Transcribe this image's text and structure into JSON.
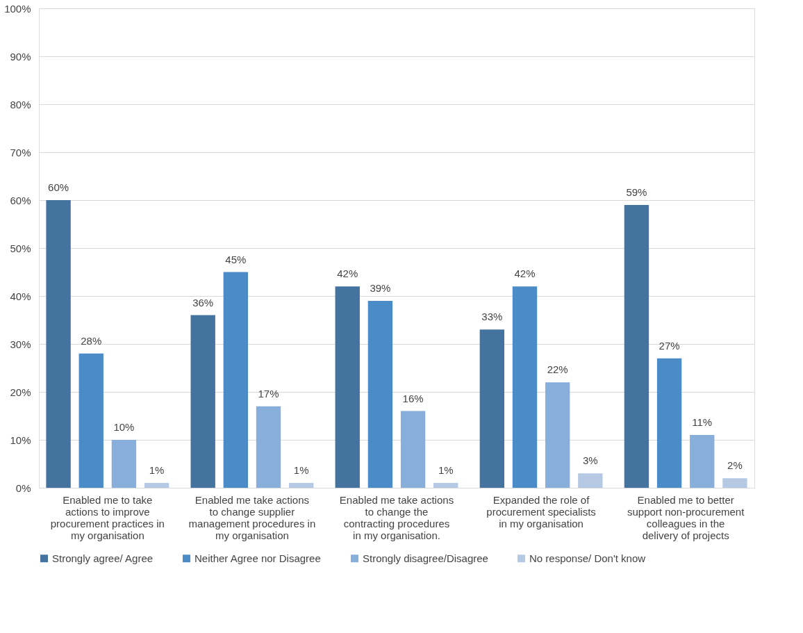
{
  "chart_data": {
    "type": "bar",
    "categories": [
      "Enabled me to take actions to improve procurement practices in my organisation",
      "Enabled me take actions to change supplier management procedures in my organisation",
      "Enabled me take actions to change the contracting procedures in my organisation.",
      "Expanded the role of procurement specialists in my organisation",
      "Enabled me to better support non-procurement colleagues in the delivery of projects"
    ],
    "series": [
      {
        "name": "Strongly agree/ Agree",
        "color": "#44739f",
        "values": [
          60,
          36,
          42,
          33,
          59
        ],
        "value_labels": [
          "60%",
          "36%",
          "42%",
          "33%",
          "59%"
        ]
      },
      {
        "name": "Neither Agree nor Disagree",
        "color": "#4b8bc8",
        "values": [
          28,
          45,
          39,
          42,
          27
        ],
        "value_labels": [
          "28%",
          "45%",
          "39%",
          "42%",
          "27%"
        ]
      },
      {
        "name": "Strongly disagree/Disagree",
        "color": "#88aedc",
        "values": [
          10,
          17,
          16,
          22,
          11
        ],
        "value_labels": [
          "10%",
          "17%",
          "16%",
          "22%",
          "11%"
        ]
      },
      {
        "name": "No response/ Don't know",
        "color": "#b5c9e4",
        "values": [
          1,
          1,
          1,
          3,
          2
        ],
        "value_labels": [
          "1%",
          "1%",
          "1%",
          "3%",
          "2%"
        ]
      }
    ],
    "ylim": [
      0,
      100
    ],
    "yticks": [
      {
        "value": 0,
        "label": "0%"
      },
      {
        "value": 10,
        "label": "10%"
      },
      {
        "value": 20,
        "label": "20%"
      },
      {
        "value": 30,
        "label": "30%"
      },
      {
        "value": 40,
        "label": "40%"
      },
      {
        "value": 50,
        "label": "50%"
      },
      {
        "value": 60,
        "label": "60%"
      },
      {
        "value": 70,
        "label": "70%"
      },
      {
        "value": 80,
        "label": "80%"
      },
      {
        "value": 90,
        "label": "90%"
      },
      {
        "value": 100,
        "label": "100%"
      }
    ],
    "grid": "y",
    "legend": "bottom"
  }
}
